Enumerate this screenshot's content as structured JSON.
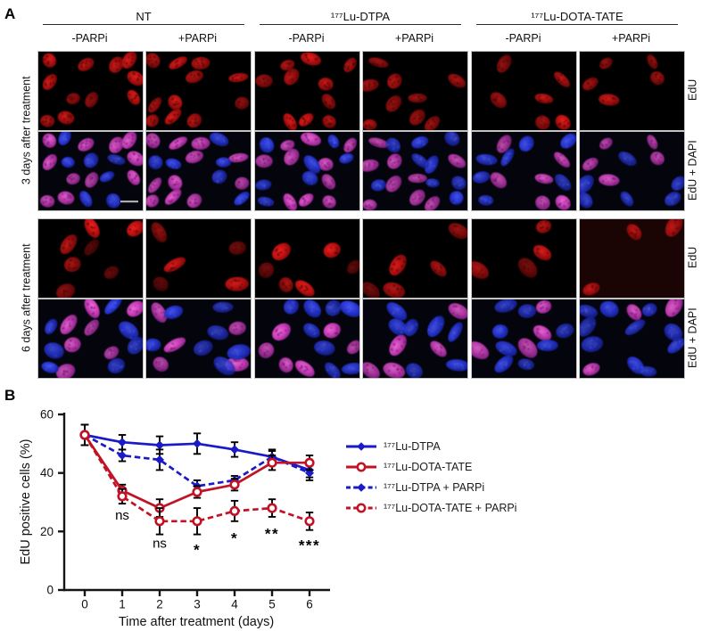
{
  "figure": {
    "panel_a_label": "A",
    "panel_b_label": "B"
  },
  "colors": {
    "blue": "#1a1ac6",
    "red": "#c11226",
    "axis_black": "#151515",
    "edu_background": "#000000",
    "dapi_background": "#04040d",
    "edu_red_tint_background": "#1a0404"
  },
  "panel_a": {
    "groups": [
      {
        "label": "NT",
        "conditions": [
          "-PARPi",
          "+PARPi"
        ]
      },
      {
        "label": "¹⁷⁷Lu-DTPA",
        "conditions": [
          "-PARPi",
          "+PARPi"
        ]
      },
      {
        "label": "¹⁷⁷Lu-DOTA-TATE",
        "conditions": [
          "-PARPi",
          "+PARPi"
        ]
      }
    ],
    "stain_labels": [
      "EdU",
      "EdU + DAPI"
    ],
    "timepoints": [
      {
        "label": "3 days after treatment",
        "columns": [
          {
            "group": "NT",
            "condition": "-PARPi",
            "edu_positive": 11,
            "total": 18,
            "seed": 11
          },
          {
            "group": "NT",
            "condition": "+PARPi",
            "edu_positive": 11,
            "total": 17,
            "seed": 22
          },
          {
            "group": "¹⁷⁷Lu-DTPA",
            "condition": "-PARPi",
            "edu_positive": 10,
            "total": 17,
            "seed": 33
          },
          {
            "group": "¹⁷⁷Lu-DTPA",
            "condition": "+PARPi",
            "edu_positive": 9,
            "total": 18,
            "seed": 44
          },
          {
            "group": "¹⁷⁷Lu-DOTA-TATE",
            "condition": "-PARPi",
            "edu_positive": 6,
            "total": 13,
            "seed": 55
          },
          {
            "group": "¹⁷⁷Lu-DOTA-TATE",
            "condition": "+PARPi",
            "edu_positive": 5,
            "total": 11,
            "seed": 66
          }
        ]
      },
      {
        "label": "6 days after treatment",
        "columns": [
          {
            "group": "NT",
            "condition": "-PARPi",
            "edu_positive": 7,
            "total": 14,
            "seed": 77
          },
          {
            "group": "NT",
            "condition": "+PARPi",
            "edu_positive": 5,
            "total": 12,
            "seed": 88
          },
          {
            "group": "¹⁷⁷Lu-DTPA",
            "condition": "-PARPi",
            "edu_positive": 6,
            "total": 14,
            "seed": 99
          },
          {
            "group": "¹⁷⁷Lu-DTPA",
            "condition": "+PARPi",
            "edu_positive": 5,
            "total": 12,
            "seed": 110
          },
          {
            "group": "¹⁷⁷Lu-DOTA-TATE",
            "condition": "-PARPi",
            "edu_positive": 4,
            "total": 12,
            "seed": 121
          },
          {
            "group": "¹⁷⁷Lu-DOTA-TATE",
            "condition": "+PARPi",
            "edu_positive": 3,
            "total": 13,
            "seed": 132,
            "tint": "#1a0404"
          }
        ]
      }
    ],
    "scale_bar": {
      "timepoint": 0,
      "column": 0,
      "stain": "EdU + DAPI"
    }
  },
  "chart_data": {
    "type": "line",
    "title": "",
    "xlabel": "Time after treatment (days)",
    "ylabel": "EdU positive cells (%)",
    "x": [
      0,
      1,
      2,
      3,
      4,
      5,
      6
    ],
    "xlim": [
      -0.55,
      6.55
    ],
    "ylim": [
      0,
      60
    ],
    "yticks": [
      0,
      20,
      40,
      60
    ],
    "grid": false,
    "legend_position": "right",
    "series": [
      {
        "name": "¹⁷⁷Lu-DTPA",
        "color": "#1a1ac6",
        "line": "solid",
        "marker": "diamond",
        "values": [
          53,
          50.5,
          49.5,
          50,
          48,
          45.5,
          41
        ],
        "errors": [
          3.5,
          2.5,
          3,
          3.5,
          2.5,
          2.5,
          2.5
        ]
      },
      {
        "name": "¹⁷⁷Lu-DOTA-TATE",
        "color": "#c11226",
        "line": "solid",
        "marker": "open-circle",
        "values": [
          53,
          34,
          28,
          33.5,
          36,
          43.5,
          43.5
        ],
        "errors": [
          3.5,
          2,
          3,
          2,
          2,
          2.5,
          2.5
        ]
      },
      {
        "name": "¹⁷⁷Lu-DTPA + PARPi",
        "color": "#1a1ac6",
        "line": "dashed",
        "marker": "diamond",
        "values": [
          53,
          46,
          44.5,
          35.5,
          37.5,
          45.5,
          40
        ],
        "errors": [
          3.5,
          2,
          3.5,
          2,
          1.5,
          2,
          2.5
        ]
      },
      {
        "name": "¹⁷⁷Lu-DOTA-TATE + PARPi",
        "color": "#c11226",
        "line": "dashed",
        "marker": "open-circle",
        "values": [
          53,
          32,
          23.5,
          23.5,
          27,
          28,
          23.5
        ],
        "errors": [
          3.5,
          2.5,
          4.5,
          4.5,
          3.5,
          3,
          3
        ]
      }
    ],
    "annotations": [
      {
        "day": 1,
        "text": "ns",
        "value": 24
      },
      {
        "day": 2,
        "text": "ns",
        "value": 14.5
      },
      {
        "day": 3,
        "text": "*",
        "value": 12
      },
      {
        "day": 4,
        "text": "*",
        "value": 16
      },
      {
        "day": 5,
        "text": "**",
        "value": 17.5
      },
      {
        "day": 6,
        "text": "***",
        "value": 13.5
      }
    ]
  }
}
